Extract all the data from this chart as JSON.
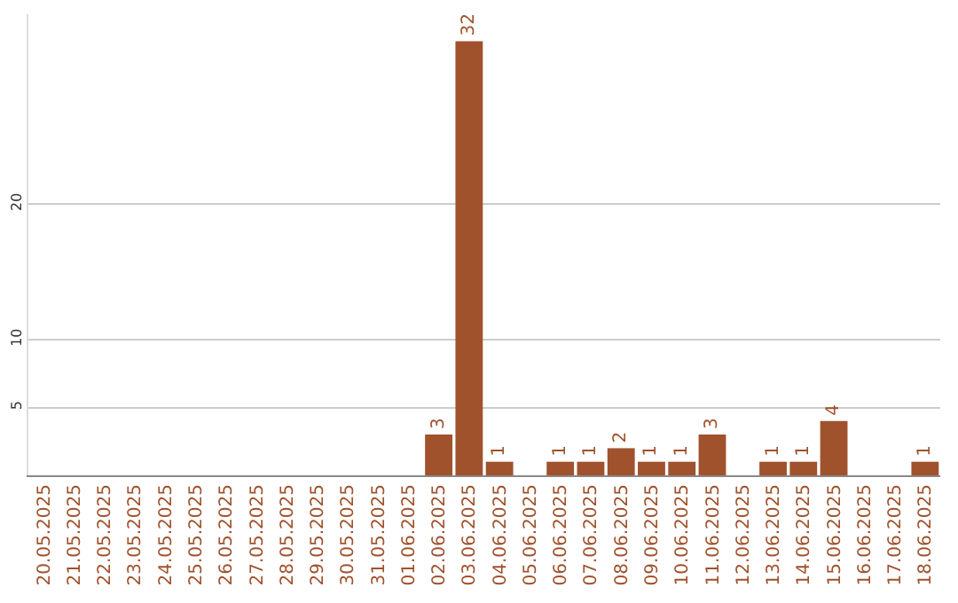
{
  "chart_data": {
    "type": "bar",
    "categories": [
      "20.05.2025",
      "21.05.2025",
      "22.05.2025",
      "23.05.2025",
      "24.05.2025",
      "25.05.2025",
      "26.05.2025",
      "27.05.2025",
      "28.05.2025",
      "29.05.2025",
      "30.05.2025",
      "31.05.2025",
      "01.06.2025",
      "02.06.2025",
      "03.06.2025",
      "04.06.2025",
      "05.06.2025",
      "06.06.2025",
      "07.06.2025",
      "08.06.2025",
      "09.06.2025",
      "10.06.2025",
      "11.06.2025",
      "12.06.2025",
      "13.06.2025",
      "14.06.2025",
      "15.06.2025",
      "16.06.2025",
      "17.06.2025",
      "18.06.2025"
    ],
    "values": [
      0,
      0,
      0,
      0,
      0,
      0,
      0,
      0,
      0,
      0,
      0,
      0,
      0,
      3,
      32,
      1,
      0,
      1,
      1,
      2,
      1,
      1,
      3,
      0,
      1,
      1,
      4,
      0,
      0,
      1
    ],
    "value_labels": [
      null,
      null,
      null,
      null,
      null,
      null,
      null,
      null,
      null,
      null,
      null,
      null,
      null,
      "3",
      "32",
      "1",
      null,
      "1",
      "1",
      "2",
      "1",
      "1",
      "3",
      null,
      "1",
      "1",
      "4",
      null,
      null,
      "1"
    ],
    "color": "#a0522d",
    "ylim": [
      0,
      34
    ],
    "yticks": [
      5,
      10,
      20
    ],
    "grid": "y"
  }
}
